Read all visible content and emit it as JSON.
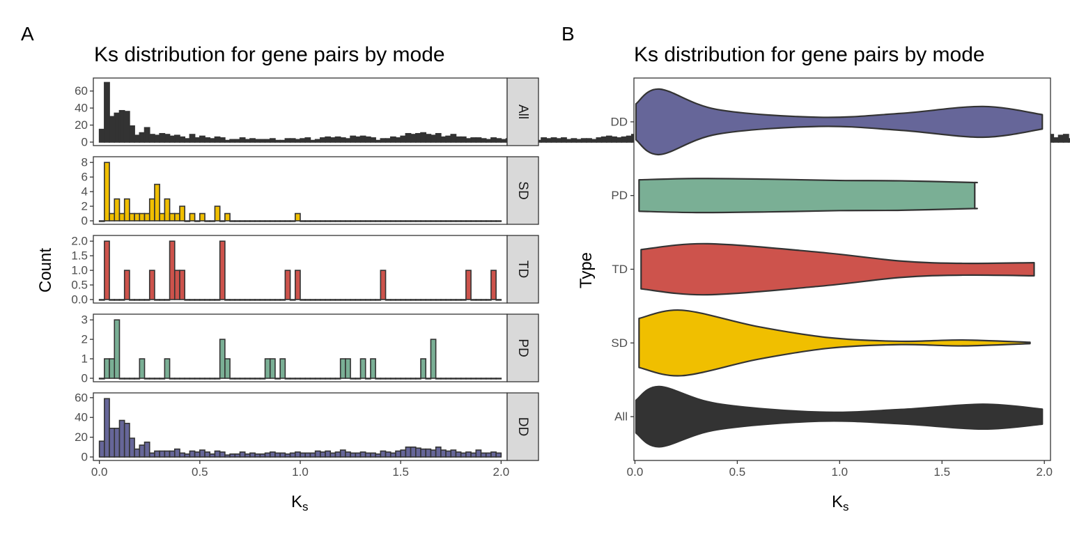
{
  "figure": {
    "panel_a": {
      "letter": "A"
    },
    "panel_b": {
      "letter": "B"
    }
  },
  "colors": {
    "All": "#333333",
    "SD": "#f0bf00",
    "TD": "#cd534c",
    "PD": "#7aaf95",
    "DD": "#666699",
    "outline": "#333333",
    "strip": "#d9d9d9"
  },
  "chart_data": [
    {
      "type": "bar",
      "subtype": "faceted-histogram",
      "title": "Ks distribution for gene pairs by mode",
      "xlabel": "Ks",
      "xlabel_main": "K",
      "xlabel_sub": "s",
      "ylabel": "Count",
      "xlim": [
        -0.03,
        2.03
      ],
      "x_ticks": [
        "0.0",
        "0.5",
        "1.0",
        "1.5",
        "2.0"
      ],
      "x_tick_values": [
        0,
        0.5,
        1.0,
        1.5,
        2.0
      ],
      "bin_width": 0.025,
      "bin_start": 0.0125,
      "grid": false,
      "facets": [
        {
          "name": "All",
          "ylim": [
            0,
            72
          ],
          "y_tick_values": [
            0,
            20,
            40,
            60
          ],
          "y_ticks": [
            "0",
            "20",
            "40",
            "60"
          ],
          "values": [
            15,
            70,
            30,
            34,
            37,
            36,
            19,
            8,
            11,
            17,
            9,
            8,
            10,
            9,
            7,
            8,
            6,
            4,
            9,
            5,
            7,
            5,
            4,
            6,
            5,
            2,
            3,
            3,
            5,
            3,
            4,
            3,
            3,
            3,
            4,
            2,
            2,
            4,
            4,
            3,
            4,
            5,
            2,
            3,
            5,
            6,
            5,
            6,
            5,
            4,
            7,
            6,
            7,
            6,
            5,
            2,
            4,
            4,
            6,
            5,
            7,
            10,
            9,
            10,
            11,
            9,
            8,
            10,
            6,
            7,
            9,
            6,
            6,
            4,
            5,
            5,
            4,
            3,
            5,
            4,
            3,
            4,
            3,
            2,
            5,
            3,
            3,
            2,
            5,
            4,
            5,
            4,
            5,
            3,
            4,
            3,
            4,
            4,
            3,
            5,
            6,
            7,
            6,
            5,
            6,
            7,
            9,
            8,
            8,
            7,
            5,
            4,
            5,
            6,
            6,
            8,
            4,
            5,
            6,
            7,
            5,
            4,
            9,
            8,
            6,
            7,
            10,
            7,
            6,
            8,
            5,
            3,
            6,
            4,
            5,
            4,
            3,
            6,
            7,
            5,
            4,
            4,
            5,
            6,
            8,
            6,
            5,
            4,
            7,
            8,
            9,
            10,
            11,
            9,
            8,
            7,
            6,
            10,
            9,
            10,
            11,
            9,
            8,
            7,
            9,
            8,
            7,
            9,
            10,
            8,
            7,
            8,
            9,
            8,
            6,
            9,
            8,
            9,
            7,
            8,
            10,
            9,
            8,
            7,
            6,
            9,
            8,
            7,
            8,
            9,
            5,
            8,
            9,
            4,
            7,
            8,
            9,
            4,
            8,
            9,
            10,
            5,
            4,
            5
          ]
        },
        {
          "name": "SD",
          "ylim": [
            0,
            8.4
          ],
          "y_tick_values": [
            0,
            2,
            4,
            6,
            8
          ],
          "y_ticks": [
            "0",
            "2",
            "4",
            "6",
            "8"
          ],
          "values": [
            0,
            8,
            1,
            3,
            1,
            3,
            1,
            1,
            1,
            1,
            3,
            5,
            1,
            3,
            1,
            1,
            2,
            0,
            1,
            0,
            1,
            0,
            0,
            2,
            0,
            1,
            0,
            0,
            0,
            0,
            0,
            0,
            0,
            0,
            0,
            0,
            0,
            0,
            0,
            1,
            0,
            0,
            0,
            0,
            0,
            0,
            0,
            0,
            0,
            0,
            0,
            0,
            0,
            0,
            0,
            0,
            0,
            0,
            0,
            0,
            0,
            0,
            0,
            0,
            0,
            0,
            0,
            0,
            0,
            0,
            0,
            0,
            0,
            0,
            0,
            0,
            0,
            0,
            0,
            0
          ]
        },
        {
          "name": "TD",
          "ylim": [
            0,
            2.1
          ],
          "y_tick_values": [
            0,
            0.5,
            1,
            1.5,
            2
          ],
          "y_ticks": [
            "0.0",
            "0.5",
            "1.0",
            "1.5",
            "2.0"
          ],
          "values": [
            0,
            2,
            0,
            0,
            0,
            1,
            0,
            0,
            0,
            0,
            1,
            0,
            0,
            0,
            2,
            1,
            1,
            0,
            0,
            0,
            0,
            0,
            0,
            0,
            2,
            0,
            0,
            0,
            0,
            0,
            0,
            0,
            0,
            0,
            0,
            0,
            0,
            1,
            0,
            1,
            0,
            0,
            0,
            0,
            0,
            0,
            0,
            0,
            0,
            0,
            0,
            0,
            0,
            0,
            0,
            0,
            1,
            0,
            0,
            0,
            0,
            0,
            0,
            0,
            0,
            0,
            0,
            0,
            0,
            0,
            0,
            0,
            0,
            1,
            0,
            0,
            0,
            0,
            1,
            0
          ]
        },
        {
          "name": "PD",
          "ylim": [
            0,
            3.15
          ],
          "y_tick_values": [
            0,
            1,
            2,
            3
          ],
          "y_ticks": [
            "0",
            "1",
            "2",
            "3"
          ],
          "values": [
            0,
            1,
            1,
            3,
            0,
            0,
            0,
            0,
            1,
            0,
            0,
            0,
            0,
            1,
            0,
            0,
            0,
            0,
            0,
            0,
            0,
            0,
            0,
            0,
            2,
            1,
            0,
            0,
            0,
            0,
            0,
            0,
            0,
            1,
            1,
            0,
            1,
            0,
            0,
            0,
            0,
            0,
            0,
            0,
            0,
            0,
            0,
            0,
            1,
            1,
            0,
            0,
            1,
            0,
            1,
            0,
            0,
            0,
            0,
            0,
            0,
            0,
            0,
            0,
            1,
            0,
            2,
            0,
            0,
            0,
            0,
            0,
            0,
            0,
            0,
            0,
            0,
            0,
            0,
            0
          ]
        },
        {
          "name": "DD",
          "ylim": [
            0,
            62
          ],
          "y_tick_values": [
            0,
            20,
            40,
            60
          ],
          "y_ticks": [
            "0",
            "20",
            "40",
            "60"
          ],
          "values": [
            16,
            59,
            29,
            29,
            37,
            34,
            19,
            8,
            12,
            15,
            4,
            6,
            6,
            6,
            6,
            8,
            4,
            3,
            6,
            5,
            7,
            5,
            3,
            6,
            5,
            2,
            3,
            3,
            5,
            3,
            4,
            3,
            3,
            4,
            5,
            4,
            4,
            3,
            4,
            5,
            4,
            4,
            4,
            6,
            5,
            6,
            4,
            5,
            7,
            5,
            4,
            4,
            5,
            4,
            4,
            3,
            6,
            5,
            4,
            6,
            7,
            10,
            10,
            9,
            8,
            8,
            7,
            10,
            7,
            6,
            7,
            5,
            4,
            5,
            4,
            7,
            4,
            4,
            5,
            4
          ]
        }
      ]
    },
    {
      "type": "violin",
      "title": "Ks distribution for gene pairs by mode",
      "xlabel": "Ks",
      "xlabel_main": "K",
      "xlabel_sub": "s",
      "ylabel": "Type",
      "xlim": [
        -0.005,
        2.03
      ],
      "x_ticks": [
        "0.0",
        "0.5",
        "1.0",
        "1.5",
        "2.0"
      ],
      "x_tick_values": [
        0,
        0.5,
        1.0,
        1.5,
        2.0
      ],
      "grid": false,
      "categories": [
        "DD",
        "PD",
        "TD",
        "SD",
        "All"
      ],
      "series": [
        {
          "name": "DD",
          "ks": [
            0.005,
            0.12,
            0.4,
            0.9,
            1.3,
            1.7,
            1.99
          ],
          "half_width": [
            0.55,
            1.0,
            0.38,
            0.14,
            0.26,
            0.47,
            0.22
          ]
        },
        {
          "name": "PD",
          "ks": [
            0.02,
            0.3,
            0.65,
            1.0,
            1.3,
            1.64,
            1.66
          ],
          "half_width": [
            0.48,
            0.52,
            0.5,
            0.46,
            0.45,
            0.4,
            0.4
          ]
        },
        {
          "name": "TD",
          "ks": [
            0.03,
            0.35,
            0.9,
            1.3,
            1.6,
            1.95
          ],
          "half_width": [
            0.6,
            0.78,
            0.52,
            0.25,
            0.18,
            0.2
          ]
        },
        {
          "name": "SD",
          "ks": [
            0.02,
            0.23,
            0.6,
            0.95,
            1.3,
            1.6,
            1.93
          ],
          "half_width": [
            0.75,
            1.0,
            0.5,
            0.16,
            0.05,
            0.09,
            0.02
          ]
        },
        {
          "name": "All",
          "ks": [
            0.005,
            0.12,
            0.4,
            0.9,
            1.3,
            1.7,
            1.99
          ],
          "half_width": [
            0.5,
            0.92,
            0.4,
            0.14,
            0.22,
            0.38,
            0.23
          ]
        }
      ]
    }
  ]
}
